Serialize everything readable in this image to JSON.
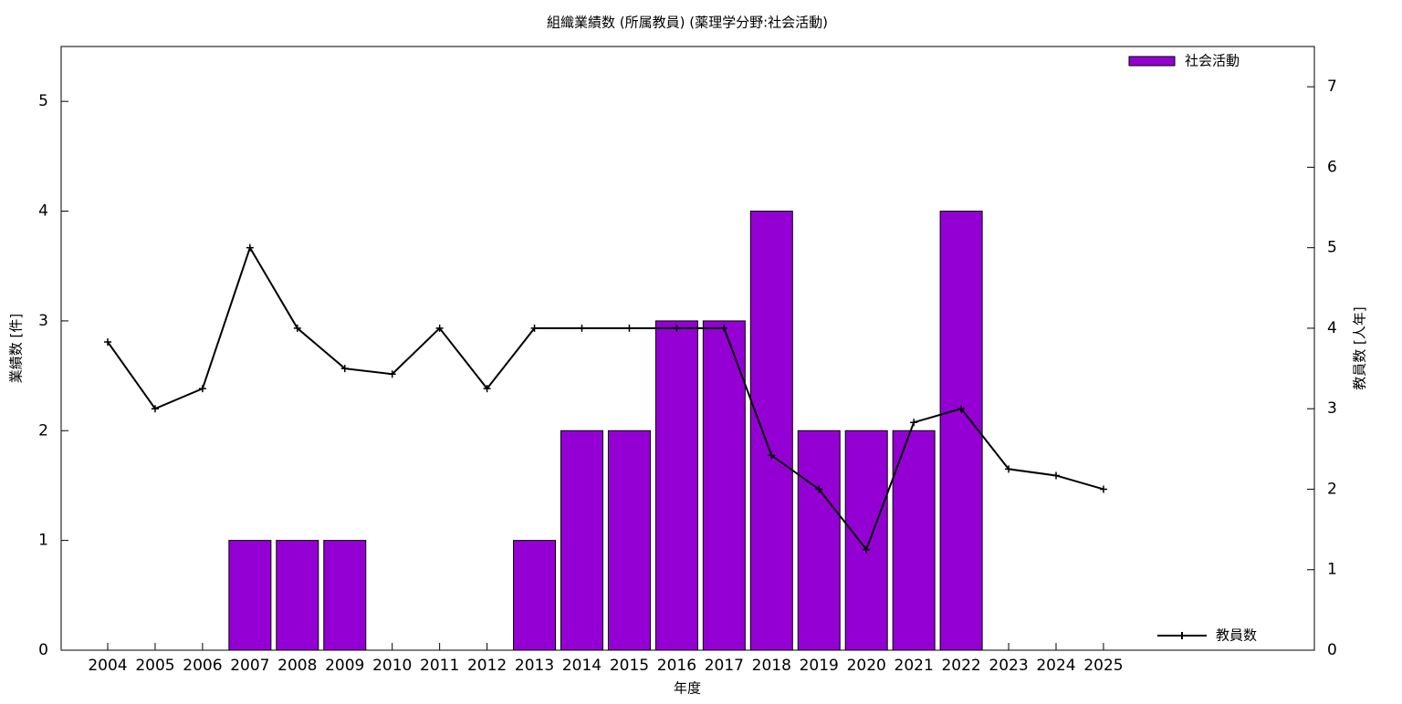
{
  "chart_data": {
    "type": "bar-line",
    "title": "組織業績数 (所属教員) (薬理学分野:社会活動)",
    "x_label": "年度",
    "y_label": "業績数 [件]",
    "y2_label": "教員数 [人年]",
    "categories": [
      "2004",
      "2005",
      "2006",
      "2007",
      "2008",
      "2009",
      "2010",
      "2011",
      "2012",
      "2013",
      "2014",
      "2015",
      "2016",
      "2017",
      "2018",
      "2019",
      "2020",
      "2021",
      "2022",
      "2023",
      "2024",
      "2025"
    ],
    "series": [
      {
        "name": "社会活動",
        "type": "bar",
        "color": "#9400d3",
        "values": [
          0,
          0,
          0,
          1,
          1,
          1,
          0,
          0,
          0,
          1,
          2,
          2,
          3,
          3,
          4,
          2,
          2,
          2,
          4,
          0,
          0,
          0
        ]
      },
      {
        "name": "教員数",
        "type": "line",
        "color": "#000000",
        "axis": "y2",
        "values": [
          3.83,
          3.0,
          3.25,
          5.0,
          4.0,
          3.5,
          3.43,
          4.0,
          3.25,
          4.0,
          4.0,
          4.0,
          4.0,
          4.0,
          2.42,
          2.0,
          1.25,
          2.83,
          3.0,
          2.25,
          2.17,
          2.0
        ]
      }
    ],
    "ylim": [
      0,
      5.5
    ],
    "yticks": [
      0,
      1,
      2,
      3,
      4,
      5
    ],
    "y2lim": [
      0,
      7.5
    ],
    "y2ticks": [
      0,
      1,
      2,
      3,
      4,
      5,
      6,
      7
    ]
  }
}
